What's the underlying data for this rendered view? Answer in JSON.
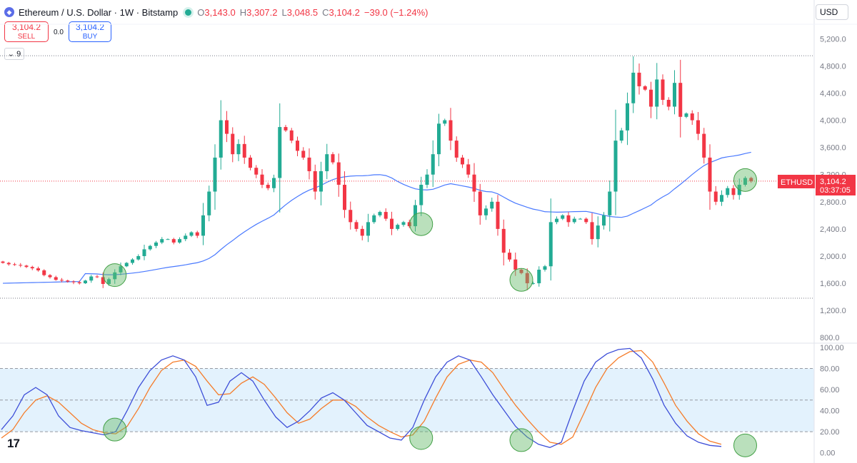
{
  "header": {
    "symbol_title": "Ethereum / U.S. Dollar · 1W · Bitstamp",
    "open_key": "O",
    "open_val": "3,143.0",
    "high_key": "H",
    "high_val": "3,307.2",
    "low_key": "L",
    "low_val": "3,048.5",
    "close_key": "C",
    "close_val": "3,104.2",
    "change": "−39.0 (−1.24%)"
  },
  "currency": "USD",
  "trade": {
    "sell_price": "3,104.2",
    "sell_label": "SELL",
    "spread": "0.0",
    "buy_price": "3,104.2",
    "buy_label": "BUY"
  },
  "collapse_count": "9",
  "price_tag": {
    "symbol": "ETHUSD",
    "price": "3,104.2",
    "countdown": "03:37:05"
  },
  "logo_text": "17",
  "colors": {
    "up": "#22ab94",
    "down": "#f23645",
    "ma": "#2962ff",
    "k_line": "#3d4ed8",
    "d_line": "#f57c2a",
    "band": "#e3f2fd",
    "marker": "#66bb6a"
  },
  "chart_data": [
    {
      "type": "candlestick",
      "symbol": "ETHUSD",
      "interval": "1W",
      "y_ticks": [
        800,
        1200,
        1600,
        2000,
        2400,
        2800,
        3200,
        3600,
        4000,
        4400,
        4800,
        5200
      ],
      "y_tick_labels": [
        "800.0",
        "1,200.0",
        "1,600.0",
        "2,000.0",
        "2,400.0",
        "2,800.0",
        "3,200.0",
        "3,600.0",
        "4,000.0",
        "4,400.0",
        "4,800.0",
        "5,200.0"
      ],
      "ylim": [
        750,
        5350
      ],
      "horizontal_levels": [
        4950,
        1380
      ],
      "last_price": 3104.2,
      "closes": [
        1900,
        1880,
        1870,
        1860,
        1840,
        1820,
        1790,
        1720,
        1690,
        1650,
        1640,
        1625,
        1615,
        1600,
        1640,
        1700,
        1690,
        1590,
        1660,
        1760,
        1850,
        1900,
        1950,
        2000,
        2100,
        2150,
        2200,
        2250,
        2250,
        2200,
        2250,
        2300,
        2350,
        2300,
        2600,
        2950,
        3450,
        4000,
        3800,
        3500,
        3650,
        3450,
        3300,
        3200,
        3050,
        3000,
        3150,
        3900,
        3850,
        3700,
        3550,
        3450,
        3250,
        2950,
        3250,
        3500,
        3380,
        3050,
        2680,
        2500,
        2400,
        2300,
        2500,
        2600,
        2650,
        2550,
        2400,
        2460,
        2500,
        2440,
        2750,
        3050,
        3200,
        3500,
        3950,
        4000,
        3700,
        3450,
        3350,
        3200,
        2950,
        2600,
        2700,
        2800,
        2400,
        2050,
        1950,
        1800,
        1750,
        1600,
        1600,
        1800,
        1850,
        2500,
        2550,
        2600,
        2500,
        2550,
        2550,
        2500,
        2250,
        2450,
        2600,
        2950,
        3700,
        3850,
        4250,
        4700,
        4500,
        4450,
        4200,
        4600,
        4300,
        4200,
        4550,
        4050,
        4100,
        4000,
        3800,
        3450,
        2950,
        2800,
        2900,
        3000,
        2900,
        3050,
        3150,
        3104
      ]
    },
    {
      "type": "line",
      "name": "stochastic",
      "y_ticks": [
        0,
        20,
        40,
        60,
        80,
        100
      ],
      "y_tick_labels": [
        "0.00",
        "20.00",
        "40.00",
        "60.00",
        "80.00",
        "100.00"
      ],
      "ylim": [
        -7,
        102
      ],
      "band": [
        20,
        80
      ],
      "midline": 50,
      "k_values": [
        22,
        35,
        55,
        62,
        55,
        35,
        24,
        21,
        19,
        17,
        20,
        40,
        62,
        78,
        88,
        92,
        88,
        72,
        45,
        48,
        68,
        76,
        68,
        50,
        34,
        24,
        30,
        40,
        52,
        57,
        50,
        38,
        26,
        20,
        14,
        12,
        24,
        50,
        72,
        86,
        92,
        88,
        72,
        55,
        40,
        25,
        15,
        8,
        5,
        10,
        40,
        68,
        86,
        94,
        98,
        99,
        90,
        70,
        45,
        28,
        16,
        10,
        7,
        6
      ],
      "d_values": [
        14,
        22,
        38,
        50,
        54,
        48,
        38,
        28,
        22,
        19,
        18,
        25,
        42,
        62,
        78,
        86,
        88,
        82,
        68,
        55,
        56,
        66,
        72,
        65,
        52,
        38,
        28,
        32,
        42,
        50,
        50,
        44,
        34,
        26,
        20,
        15,
        17,
        30,
        52,
        72,
        84,
        88,
        86,
        76,
        60,
        45,
        32,
        20,
        10,
        8,
        15,
        38,
        62,
        80,
        90,
        96,
        97,
        86,
        66,
        45,
        30,
        18,
        11,
        8
      ]
    }
  ],
  "markers": [
    {
      "bar": 19,
      "price": 1720,
      "osc": 22
    },
    {
      "bar": 71,
      "price": 2470,
      "osc": 14
    },
    {
      "bar": 88,
      "price": 1650,
      "osc": 12
    },
    {
      "bar": 126,
      "price": 3120,
      "osc": 7
    }
  ]
}
